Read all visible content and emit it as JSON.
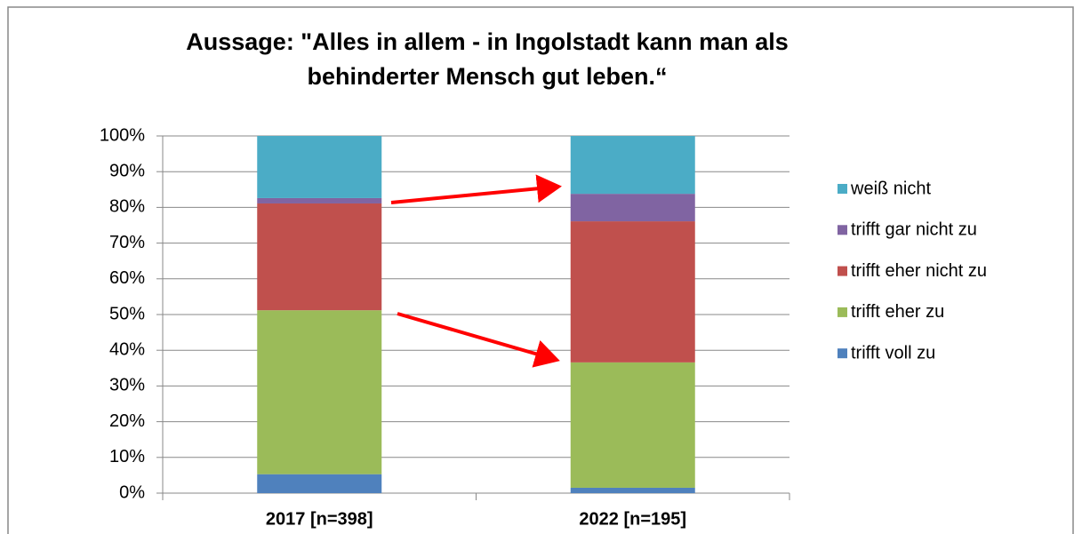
{
  "chart_data": {
    "type": "stacked_bar",
    "title": [
      "Aussage: \"Alles in allem - in Ingolstadt kann man als",
      "behinderter Mensch gut leben.“"
    ],
    "categories": [
      "2017 [n=398]",
      "2022 [n=195]"
    ],
    "series": [
      {
        "name": "trifft voll zu",
        "color": "#4f81bd",
        "values": [
          5.3,
          1.5
        ]
      },
      {
        "name": "trifft eher zu",
        "color": "#9bbb59",
        "values": [
          45.9,
          35.1
        ]
      },
      {
        "name": "trifft eher nicht zu",
        "color": "#c0504d",
        "values": [
          29.9,
          39.5
        ]
      },
      {
        "name": "trifft gar nicht zu",
        "color": "#8064a2",
        "values": [
          1.5,
          7.7
        ]
      },
      {
        "name": "weiß nicht",
        "color": "#4bacc6",
        "values": [
          17.4,
          16.2
        ]
      }
    ],
    "ylim": [
      0,
      100
    ],
    "yticks": [
      {
        "value": 0,
        "label": "0%"
      },
      {
        "value": 10,
        "label": "10%"
      },
      {
        "value": 20,
        "label": "20%"
      },
      {
        "value": 30,
        "label": "30%"
      },
      {
        "value": 40,
        "label": "40%"
      },
      {
        "value": 50,
        "label": "50%"
      },
      {
        "value": 60,
        "label": "60%"
      },
      {
        "value": 70,
        "label": "70%"
      },
      {
        "value": 80,
        "label": "80%"
      },
      {
        "value": 90,
        "label": "90%"
      },
      {
        "value": 100,
        "label": "100%"
      }
    ],
    "grid": true,
    "legend": "right"
  }
}
